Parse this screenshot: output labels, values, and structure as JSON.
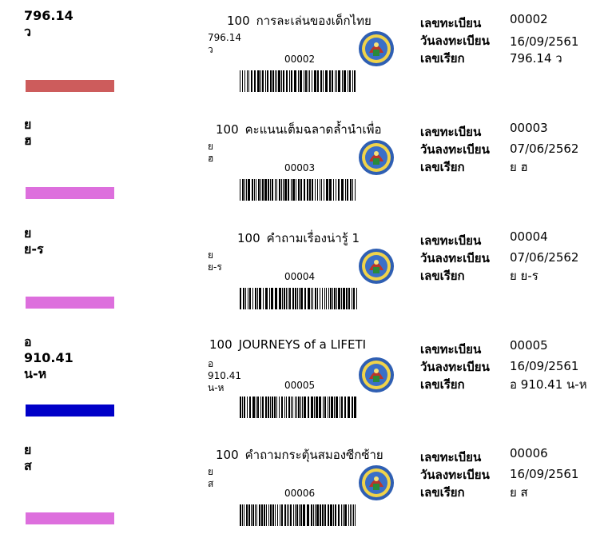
{
  "labels": {
    "reg_no": "เลขทะเบียน",
    "reg_date": "วันลงทะเบียน",
    "call_no": "เลขเรียก"
  },
  "records": [
    {
      "spine_lines": [
        "796.14",
        "ว"
      ],
      "bar_color": "#cd5c5c",
      "book_no": "100",
      "title": "การละเล่นของเด็กไทย",
      "small_call_lines": [
        "796.14",
        "ว"
      ],
      "code": "00002",
      "reg_no": "00002",
      "reg_date": "16/09/2561",
      "call_no": "796.14 ว"
    },
    {
      "spine_lines": [
        "ย",
        "ฮ"
      ],
      "bar_color": "#dd6fdd",
      "book_no": "100",
      "title": "คะแนนเต็มฉลาดล้ำนำเพื่อ",
      "small_call_lines": [
        "ย",
        "ฮ"
      ],
      "code": "00003",
      "reg_no": "00003",
      "reg_date": "07/06/2562",
      "call_no": "ย ฮ"
    },
    {
      "spine_lines": [
        "ย",
        "ย-ร"
      ],
      "bar_color": "#dd6fdd",
      "book_no": "100",
      "title": "คำถามเรื่องน่ารู้ 1",
      "small_call_lines": [
        "ย",
        "ย-ร"
      ],
      "code": "00004",
      "reg_no": "00004",
      "reg_date": "07/06/2562",
      "call_no": "ย ย-ร"
    },
    {
      "spine_lines": [
        "อ",
        "910.41",
        "น-ห"
      ],
      "bar_color": "#0000c8",
      "book_no": "100",
      "title": "JOURNEYS of a LIFETI",
      "small_call_lines": [
        "อ",
        "910.41",
        "น-ห"
      ],
      "code": "00005",
      "reg_no": "00005",
      "reg_date": "16/09/2561",
      "call_no": "อ 910.41 น-ห"
    },
    {
      "spine_lines": [
        "ย",
        "ส"
      ],
      "bar_color": "#dd6fdd",
      "book_no": "100",
      "title": "คำถามกระตุ้นสมองซีกซ้าย",
      "small_call_lines": [
        "ย",
        "ส"
      ],
      "code": "00006",
      "reg_no": "00006",
      "reg_date": "16/09/2561",
      "call_no": "ย ส"
    }
  ]
}
